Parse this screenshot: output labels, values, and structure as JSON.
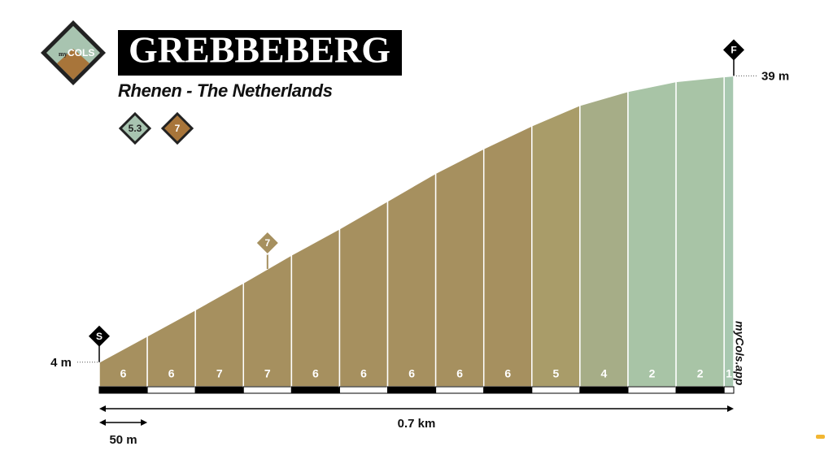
{
  "logo": {
    "prefix": "my",
    "name": "COLS"
  },
  "chart_data": {
    "type": "profile",
    "title": "GREBBEBERG",
    "subtitle": "Rhenen - The Netherlands",
    "avg_gradient": 5.3,
    "max_gradient": 7,
    "start_marker": "S",
    "finish_marker": "F",
    "distances": [
      0,
      50,
      100,
      150,
      200,
      250,
      300,
      350,
      400,
      450,
      500,
      550,
      600,
      650,
      660
    ],
    "elevations": [
      4,
      7.2,
      10.4,
      13.7,
      17.1,
      20.3,
      23.7,
      27.1,
      30.1,
      32.9,
      35.4,
      37.1,
      38.3,
      38.9,
      39
    ],
    "gradients": [
      6,
      6,
      7,
      7,
      6,
      6,
      6,
      6,
      6,
      5,
      4,
      2,
      2,
      1
    ],
    "segment_colors": [
      "#a6905f",
      "#a6905f",
      "#a6905f",
      "#a6905f",
      "#a6905f",
      "#a6905f",
      "#a6905f",
      "#a6905f",
      "#a6905f",
      "#a99c69",
      "#a6ad87",
      "#a8c4a6",
      "#a8c4a6",
      "#a8c8b0"
    ],
    "elevation_labels": [
      {
        "value": 4,
        "label": "4 m"
      },
      {
        "value": 39,
        "label": "39 m"
      }
    ],
    "scale": {
      "value": 50,
      "label": "50 m"
    },
    "total_distance": {
      "value": 660,
      "label": "0.7 km"
    },
    "xlim": [
      0,
      660
    ],
    "ylim": [
      1,
      44
    ],
    "watermark": "myCols.app"
  }
}
